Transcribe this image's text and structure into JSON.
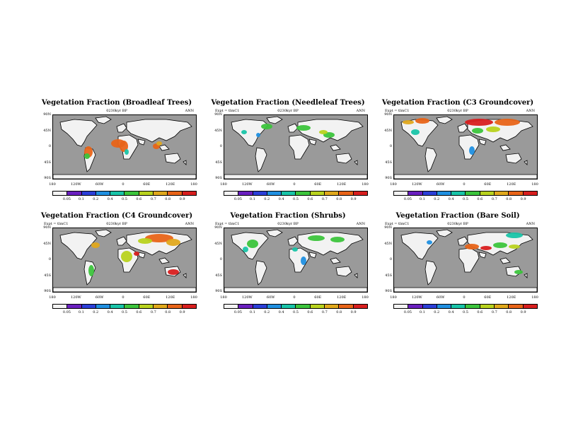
{
  "panels": [
    {
      "title": "Vegetation Fraction (Broadleaf Trees)",
      "left_label": "",
      "subtitle": "0230kyr BP",
      "right_label": "ANN"
    },
    {
      "title": "Vegetation Fraction (Needleleaf Trees)",
      "left_label": "Expt = tlmC1",
      "subtitle": "0230kyr BP",
      "right_label": "ANN"
    },
    {
      "title": "Vegetation Fraction (C3 Groundcover)",
      "left_label": "Expt = tlmC1",
      "subtitle": "0230kyr BP",
      "right_label": "ANN"
    },
    {
      "title": "Vegetation Fraction (C4 Groundcover)",
      "left_label": "Expt = tlmC1",
      "subtitle": "0230kyr BP",
      "right_label": "ANN"
    },
    {
      "title": "Vegetation Fraction (Shrubs)",
      "left_label": "Expt = tlmC1",
      "subtitle": "0230kyr BP",
      "right_label": "ANN"
    },
    {
      "title": "Vegetation Fraction (Bare Soil)",
      "left_label": "Expt = tlmC1",
      "subtitle": "0230kyr BP",
      "right_label": "ANN"
    }
  ],
  "lat_labels": [
    "90N",
    "45N",
    "0",
    "45S",
    "90S"
  ],
  "lon_labels": [
    "180",
    "120W",
    "60W",
    "0",
    "60E",
    "120E",
    "180"
  ],
  "colorbar": {
    "labels": [
      "0.05",
      "0.1",
      "0.2",
      "0.4",
      "0.5",
      "0.6",
      "0.7",
      "0.8",
      "0.9"
    ],
    "colors": [
      "#f4f4f4",
      "#6a1fbf",
      "#2b3fd8",
      "#1f8fe0",
      "#19c4a8",
      "#3cc43c",
      "#b8d21e",
      "#e0a81c",
      "#e86418",
      "#d81e1e"
    ]
  },
  "colors": {
    "ocean": "#9a9a9a",
    "land": "#f2f2f2",
    "coast": "#000000"
  }
}
